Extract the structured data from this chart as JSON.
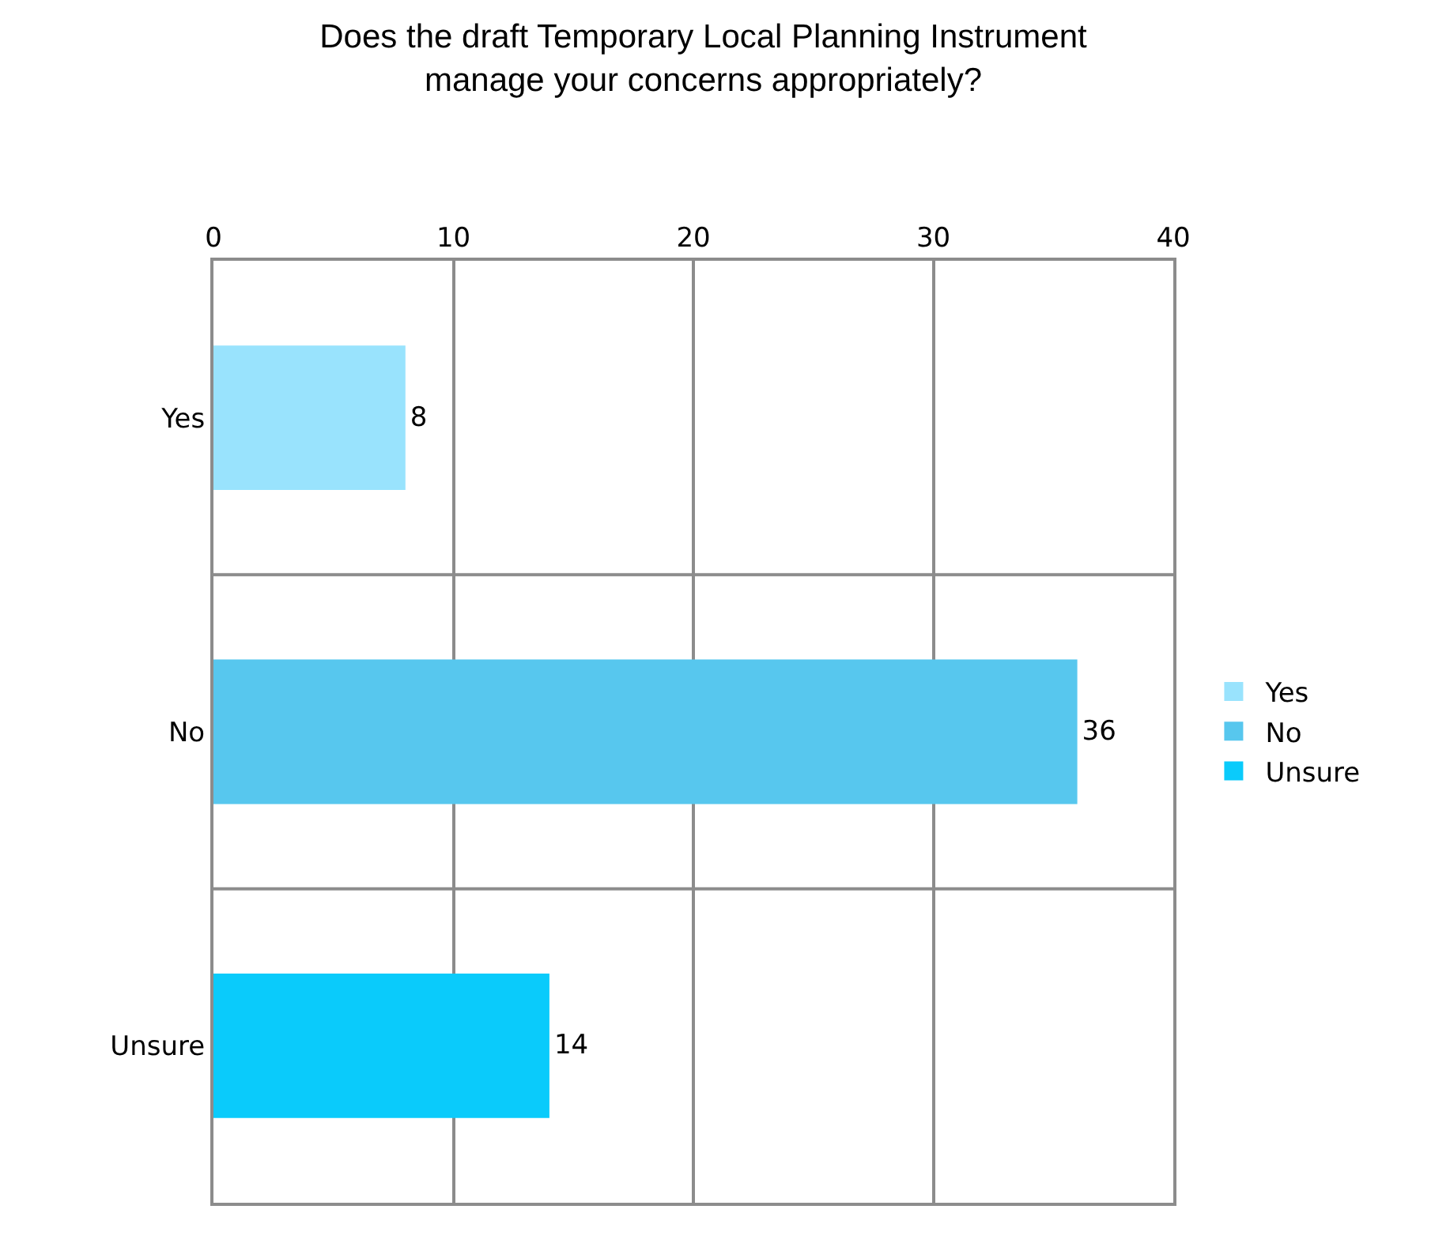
{
  "chart_data": {
    "type": "bar",
    "orientation": "horizontal",
    "title": "Does the draft Temporary Local Planning Instrument\nmanage your concerns appropriately?",
    "categories": [
      "Yes",
      "No",
      "Unsure"
    ],
    "series": [
      {
        "name": "Yes",
        "color": "#99e3fd",
        "values": [
          8,
          null,
          null
        ]
      },
      {
        "name": "No",
        "color": "#57c7ee",
        "values": [
          null,
          36,
          null
        ]
      },
      {
        "name": "Unsure",
        "color": "#0acbfb",
        "values": [
          null,
          null,
          14
        ]
      }
    ],
    "xlim": [
      0,
      40
    ],
    "xticks": [
      0,
      10,
      20,
      30,
      40
    ],
    "grid": true,
    "legend": "right",
    "data_labels": true
  }
}
